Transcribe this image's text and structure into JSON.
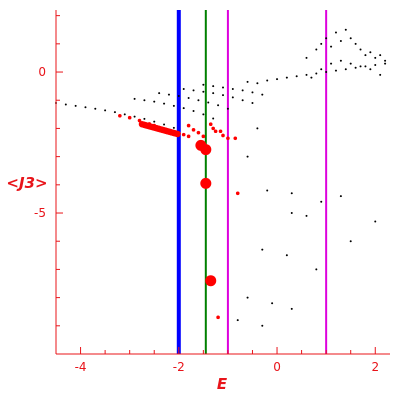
{
  "chart_data": {
    "type": "scatter",
    "title": "",
    "xlabel": "E",
    "ylabel": "<J3>",
    "xlim": [
      -4.5,
      2.3
    ],
    "ylim": [
      -10,
      2.2
    ],
    "grid": false,
    "x_ticks": [
      {
        "value": -4,
        "label": "-4"
      },
      {
        "value": -2,
        "label": "-2"
      },
      {
        "value": 0,
        "label": "0"
      },
      {
        "value": 2,
        "label": "2"
      }
    ],
    "y_ticks": [
      {
        "value": 0,
        "label": "0"
      },
      {
        "value": -5,
        "label": "-5"
      }
    ],
    "vertical_lines": [
      {
        "x": -2.0,
        "color": "#0000ff"
      },
      {
        "x": -1.45,
        "color": "#008000"
      },
      {
        "x": -1.0,
        "color": "#dd00dd"
      },
      {
        "x": 1.0,
        "color": "#dd00dd"
      }
    ],
    "colors": {
      "axis": "#e8141a",
      "highlight": "#ff0000",
      "points": "#000000"
    },
    "series": [
      {
        "color": "#000000",
        "points": [
          [
            -4.5,
            -1.1
          ],
          [
            -4.3,
            -1.15
          ],
          [
            -4.1,
            -1.2
          ],
          [
            -3.9,
            -1.25
          ],
          [
            -3.7,
            -1.3
          ],
          [
            -3.5,
            -1.36
          ],
          [
            -3.3,
            -1.42
          ],
          [
            -3.1,
            -1.5
          ],
          [
            -2.9,
            -1.58
          ],
          [
            -2.7,
            -1.66
          ],
          [
            -2.5,
            -1.76
          ],
          [
            -2.3,
            -1.86
          ],
          [
            -2.1,
            -1.98
          ],
          [
            -2.9,
            -0.95
          ],
          [
            -2.7,
            -1.0
          ],
          [
            -2.5,
            -1.05
          ],
          [
            -2.3,
            -1.12
          ],
          [
            -2.1,
            -1.2
          ],
          [
            -1.9,
            -1.28
          ],
          [
            -1.7,
            -1.38
          ],
          [
            -1.5,
            -1.5
          ],
          [
            -1.3,
            -1.65
          ],
          [
            -2.4,
            -0.75
          ],
          [
            -2.2,
            -0.8
          ],
          [
            -2.0,
            -0.85
          ],
          [
            -1.8,
            -0.92
          ],
          [
            -1.6,
            -1.0
          ],
          [
            -1.4,
            -1.08
          ],
          [
            -1.2,
            -1.18
          ],
          [
            -1.0,
            -1.3
          ],
          [
            -1.9,
            -0.6
          ],
          [
            -1.7,
            -0.65
          ],
          [
            -1.5,
            -0.7
          ],
          [
            -1.3,
            -0.75
          ],
          [
            -1.1,
            -0.82
          ],
          [
            -0.9,
            -0.9
          ],
          [
            -0.7,
            -1.0
          ],
          [
            -0.5,
            -1.1
          ],
          [
            -1.5,
            -0.45
          ],
          [
            -1.3,
            -0.5
          ],
          [
            -1.1,
            -0.55
          ],
          [
            -0.9,
            -0.6
          ],
          [
            -0.7,
            -0.65
          ],
          [
            -0.5,
            -0.72
          ],
          [
            -0.3,
            -0.8
          ],
          [
            -0.6,
            -0.35
          ],
          [
            -0.4,
            -0.4
          ],
          [
            -0.2,
            -0.3
          ],
          [
            0.0,
            -0.25
          ],
          [
            0.2,
            -0.2
          ],
          [
            0.4,
            -0.15
          ],
          [
            0.6,
            -0.1
          ],
          [
            0.8,
            -0.05
          ],
          [
            1.0,
            0.0
          ],
          [
            1.2,
            0.05
          ],
          [
            1.4,
            0.1
          ],
          [
            1.6,
            0.15
          ],
          [
            1.8,
            0.2
          ],
          [
            2.0,
            0.25
          ],
          [
            2.2,
            0.3
          ],
          [
            0.6,
            0.5
          ],
          [
            0.8,
            0.8
          ],
          [
            0.9,
            1.0
          ],
          [
            1.0,
            1.2
          ],
          [
            1.1,
            0.9
          ],
          [
            1.2,
            1.4
          ],
          [
            1.3,
            1.1
          ],
          [
            1.4,
            1.5
          ],
          [
            1.5,
            1.2
          ],
          [
            1.6,
            1.0
          ],
          [
            1.7,
            0.8
          ],
          [
            1.8,
            0.6
          ],
          [
            1.9,
            0.7
          ],
          [
            2.0,
            0.5
          ],
          [
            2.1,
            0.6
          ],
          [
            2.2,
            0.4
          ],
          [
            0.7,
            -0.2
          ],
          [
            0.9,
            0.1
          ],
          [
            1.1,
            0.3
          ],
          [
            1.3,
            0.4
          ],
          [
            1.5,
            0.3
          ],
          [
            1.7,
            0.2
          ],
          [
            1.9,
            0.1
          ],
          [
            2.1,
            -0.1
          ],
          [
            -0.4,
            -2.0
          ],
          [
            -0.6,
            -3.0
          ],
          [
            -0.2,
            -4.2
          ],
          [
            0.3,
            -4.3
          ],
          [
            0.3,
            -5.0
          ],
          [
            0.6,
            -5.1
          ],
          [
            0.9,
            -4.6
          ],
          [
            1.3,
            -4.4
          ],
          [
            2.0,
            -5.3
          ],
          [
            1.5,
            -6.0
          ],
          [
            -0.3,
            -6.3
          ],
          [
            0.2,
            -6.5
          ],
          [
            0.8,
            -7.0
          ],
          [
            -0.6,
            -8.0
          ],
          [
            -0.1,
            -8.2
          ],
          [
            0.3,
            -8.4
          ],
          [
            -0.8,
            -8.8
          ],
          [
            -0.3,
            -9.0
          ]
        ]
      },
      {
        "color": "#ff0000",
        "points": [
          [
            -3.2,
            -1.55
          ],
          [
            -3.0,
            -1.62
          ],
          [
            -2.8,
            -1.72
          ],
          [
            -2.6,
            -1.84
          ],
          [
            -2.5,
            -1.9
          ],
          [
            -2.4,
            -1.97
          ],
          [
            -2.3,
            -2.02
          ],
          [
            -2.2,
            -2.07
          ],
          [
            -2.1,
            -2.12
          ],
          [
            -2.0,
            -2.17
          ],
          [
            -1.9,
            -2.22
          ],
          [
            -1.8,
            -2.28
          ],
          [
            -1.8,
            -1.9
          ],
          [
            -1.7,
            -2.05
          ],
          [
            -1.6,
            -2.15
          ],
          [
            -1.5,
            -2.28
          ],
          [
            -1.35,
            -1.85
          ],
          [
            -1.3,
            -2.0
          ],
          [
            -1.25,
            -2.1
          ],
          [
            -1.15,
            -2.1
          ],
          [
            -1.1,
            -2.25
          ],
          [
            -1.0,
            -2.35
          ],
          [
            -0.85,
            -2.35
          ],
          [
            -0.8,
            -4.3
          ],
          [
            -1.2,
            -8.7
          ]
        ]
      },
      {
        "color": "#ff0000",
        "marker": "large",
        "points": [
          [
            -1.55,
            -2.6
          ],
          [
            -1.45,
            -2.75
          ],
          [
            -1.45,
            -3.95
          ],
          [
            -1.35,
            -7.4
          ]
        ]
      }
    ]
  }
}
